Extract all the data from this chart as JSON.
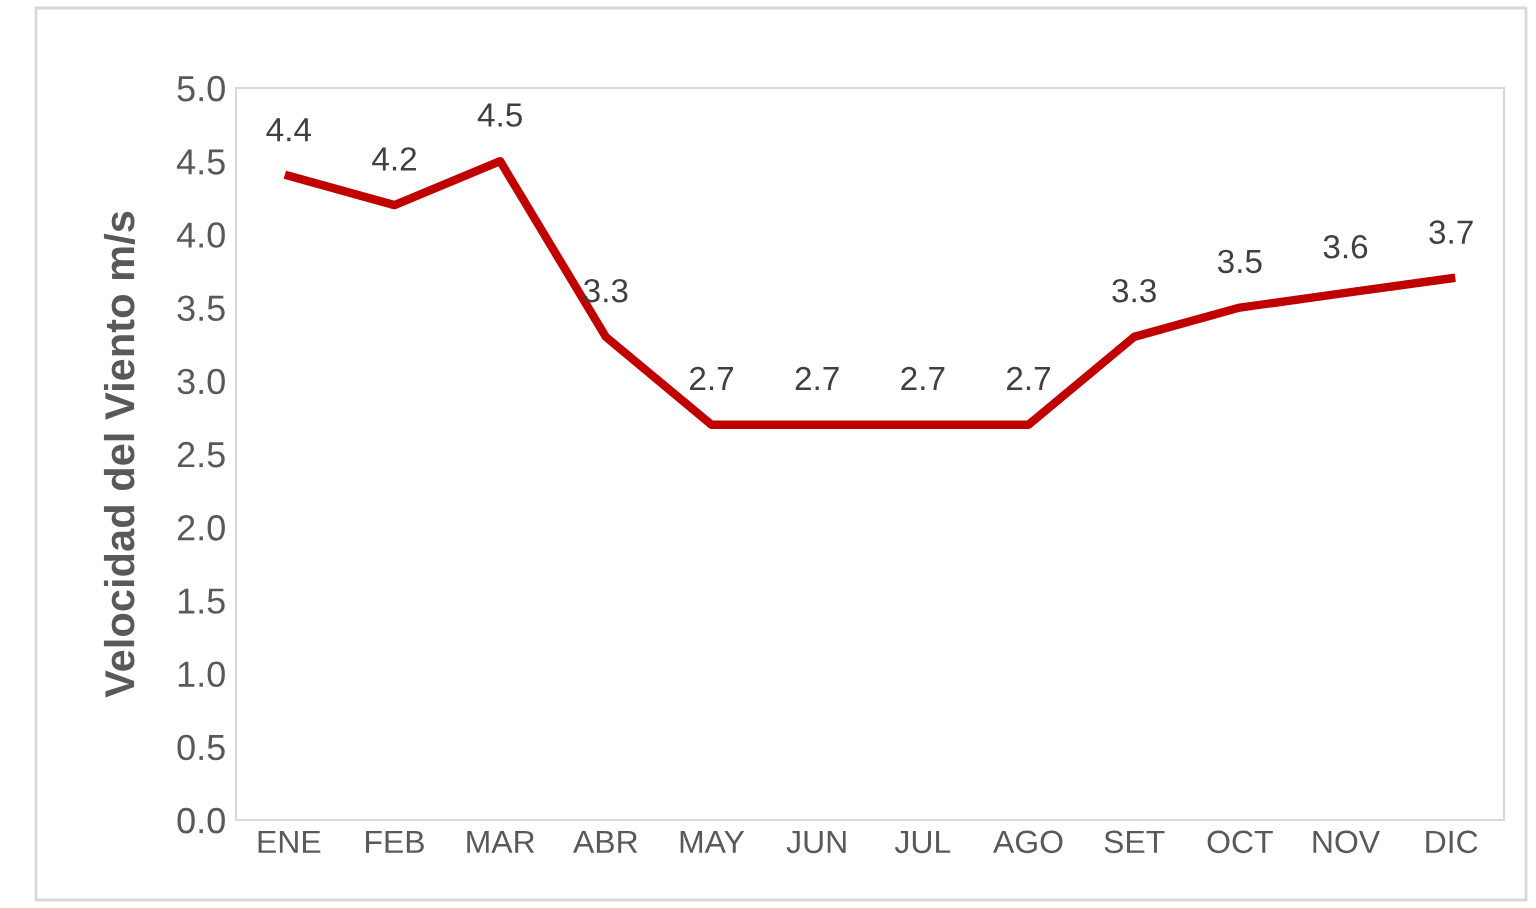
{
  "chart_data": {
    "type": "line",
    "ylabel": "Velocidad del Viento m/s",
    "categories": [
      "ENE",
      "FEB",
      "MAR",
      "ABR",
      "MAY",
      "JUN",
      "JUL",
      "AGO",
      "SET",
      "OCT",
      "NOV",
      "DIC"
    ],
    "series": [
      {
        "color": "#c00000",
        "values": [
          4.4,
          4.2,
          4.5,
          3.3,
          2.7,
          2.7,
          2.7,
          2.7,
          3.3,
          3.5,
          3.6,
          3.7
        ]
      }
    ],
    "ylim": [
      0,
      5
    ],
    "yticks": [
      {
        "value": 0,
        "label": "0.0"
      },
      0.5,
      {
        "value": 1,
        "label": "1.0"
      },
      1.5,
      {
        "value": 2,
        "label": "2.0"
      },
      2.5,
      {
        "value": 3,
        "label": "3.0"
      },
      3.5,
      {
        "value": 4,
        "label": "4.0"
      },
      4.5,
      {
        "value": 5,
        "label": "5.0"
      }
    ],
    "data_labels": true,
    "grid": false,
    "legend": false,
    "marker": "none",
    "line_style": "solid"
  }
}
